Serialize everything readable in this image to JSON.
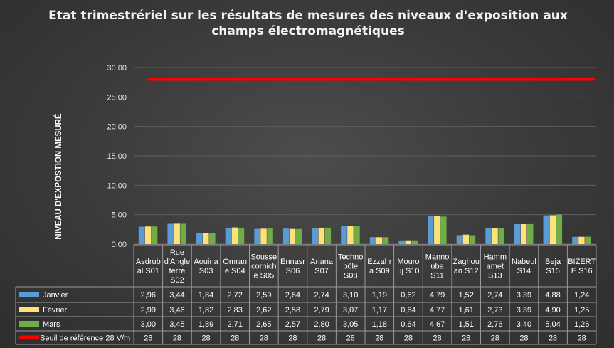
{
  "chart_data": {
    "type": "bar",
    "title": "Etat trimestrériel sur les résultats de mesures des niveaux d'exposition aux champs électromagnétiques",
    "title_lines": [
      "Etat trimestrériel sur les résultats de mesures des niveaux d'exposition aux",
      "champs électromagnétiques"
    ],
    "ylabel": "NIVEAU D'EXPOSTION MESURÉ",
    "ylim": [
      0,
      30
    ],
    "y_ticks": [
      "0,00",
      "5,00",
      "10,00",
      "15,00",
      "20,00",
      "25,00",
      "30,00"
    ],
    "y_tick_values": [
      0,
      5,
      10,
      15,
      20,
      25,
      30
    ],
    "grid": true,
    "legend_placement": "data-table",
    "categories": [
      [
        "Asdrub",
        "al S01"
      ],
      [
        "Rue",
        "d'Angle",
        "terre",
        "S02"
      ],
      [
        "Aouina",
        "S03"
      ],
      [
        "Omran",
        "e S04"
      ],
      [
        "Sousse",
        "cornich",
        "e S05"
      ],
      [
        "Ennasr",
        "S06"
      ],
      [
        "Ariana",
        "S07"
      ],
      [
        "Techno",
        "pôle",
        "S08"
      ],
      [
        "Ezzahr",
        "a S09"
      ],
      [
        "Mouro",
        "uj S10"
      ],
      [
        "Manno",
        "uba",
        "S11"
      ],
      [
        "Zaghou",
        "an S12"
      ],
      [
        "Hamm",
        "amet",
        "S13"
      ],
      [
        "Nabeul",
        "S14"
      ],
      [
        "Beja",
        "S15"
      ],
      [
        "BIZERT",
        "E S16"
      ]
    ],
    "series": [
      {
        "name": "Janvier",
        "kind": "bar",
        "color": "#5b9bd5",
        "values": [
          2.96,
          3.44,
          1.84,
          2.72,
          2.59,
          2.64,
          2.74,
          3.1,
          1.19,
          0.62,
          4.79,
          1.52,
          2.74,
          3.39,
          4.88,
          1.24
        ],
        "labels": [
          "2,96",
          "3,44",
          "1,84",
          "2,72",
          "2,59",
          "2,64",
          "2,74",
          "3,10",
          "1,19",
          "0,62",
          "4,79",
          "1,52",
          "2,74",
          "3,39",
          "4,88",
          "1,24"
        ]
      },
      {
        "name": "Février",
        "kind": "bar",
        "color": "#ffe17a",
        "values": [
          2.99,
          3.46,
          1.82,
          2.83,
          2.62,
          2.58,
          2.79,
          3.07,
          1.17,
          0.64,
          4.77,
          1.61,
          2.73,
          3.39,
          4.9,
          1.25
        ],
        "labels": [
          "2,99",
          "3,46",
          "1,82",
          "2,83",
          "2,62",
          "2,58",
          "2,79",
          "3,07",
          "1,17",
          "0,64",
          "4,77",
          "1,61",
          "2,73",
          "3,39",
          "4,90",
          "1,25"
        ]
      },
      {
        "name": "Mars",
        "kind": "bar",
        "color": "#70ad47",
        "values": [
          3.0,
          3.45,
          1.89,
          2.71,
          2.65,
          2.57,
          2.8,
          3.05,
          1.18,
          0.64,
          4.67,
          1.51,
          2.76,
          3.4,
          5.04,
          1.26
        ],
        "labels": [
          "3,00",
          "3,45",
          "1,89",
          "2,71",
          "2,65",
          "2,57",
          "2,80",
          "3,05",
          "1,18",
          "0,64",
          "4,67",
          "1,51",
          "2,76",
          "3,40",
          "5,04",
          "1,26"
        ]
      },
      {
        "name": "Seuil de référence  28 V/m",
        "kind": "line",
        "color": "#ff0000",
        "values": [
          28,
          28,
          28,
          28,
          28,
          28,
          28,
          28,
          28,
          28,
          28,
          28,
          28,
          28,
          28,
          28
        ],
        "labels": [
          "28",
          "28",
          "28",
          "28",
          "28",
          "28",
          "28",
          "28",
          "28",
          "28",
          "28",
          "28",
          "28",
          "28",
          "28",
          "28"
        ]
      }
    ],
    "colors": {
      "background": "#3a3a3a",
      "grid": "#5e5e5e",
      "table_border": "#9a9a9a",
      "text": "#ffffff"
    }
  }
}
